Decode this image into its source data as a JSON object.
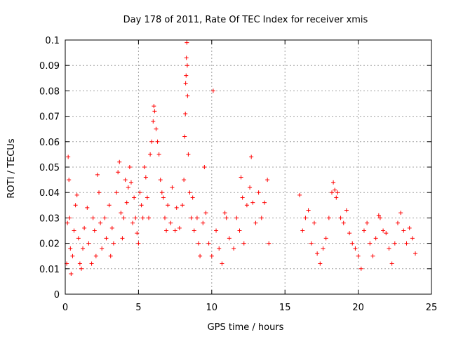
{
  "chart_data": {
    "type": "scatter",
    "title": "Day 178 of 2011, Rate Of TEC Index for receiver xmis",
    "xlabel": "GPS time / hours",
    "ylabel": "ROTI / TECUs",
    "xlim": [
      0,
      24
    ],
    "ylim": [
      0,
      0.1
    ],
    "xticks": [
      0,
      5,
      10,
      15,
      20,
      25
    ],
    "xtick_labels": [
      "0",
      "5",
      "10",
      "15",
      "20",
      "25"
    ],
    "yticks": [
      0,
      0.01,
      0.02,
      0.03,
      0.04,
      0.05,
      0.06,
      0.07,
      0.08,
      0.09,
      0.1
    ],
    "ytick_labels": [
      "0",
      "0.01",
      "0.02",
      "0.03",
      "0.04",
      "0.05",
      "0.06",
      "0.07",
      "0.08",
      "0.09",
      "0.1"
    ],
    "grid": true,
    "marker": "+",
    "color": "#ff0000",
    "data_gap_hours": [
      14.0,
      16.0
    ],
    "series": [
      {
        "name": "ROTI",
        "points": [
          [
            0.1,
            0.012
          ],
          [
            0.15,
            0.028
          ],
          [
            0.2,
            0.054
          ],
          [
            0.25,
            0.045
          ],
          [
            0.3,
            0.03
          ],
          [
            0.35,
            0.018
          ],
          [
            0.4,
            0.008
          ],
          [
            0.5,
            0.015
          ],
          [
            0.6,
            0.025
          ],
          [
            0.7,
            0.035
          ],
          [
            0.8,
            0.039
          ],
          [
            0.9,
            0.022
          ],
          [
            1.0,
            0.012
          ],
          [
            1.1,
            0.01
          ],
          [
            1.2,
            0.018
          ],
          [
            1.3,
            0.026
          ],
          [
            1.5,
            0.034
          ],
          [
            1.6,
            0.02
          ],
          [
            1.8,
            0.012
          ],
          [
            1.9,
            0.03
          ],
          [
            2.0,
            0.025
          ],
          [
            2.1,
            0.015
          ],
          [
            2.2,
            0.047
          ],
          [
            2.3,
            0.04
          ],
          [
            2.4,
            0.028
          ],
          [
            2.5,
            0.018
          ],
          [
            2.7,
            0.03
          ],
          [
            2.8,
            0.022
          ],
          [
            3.0,
            0.035
          ],
          [
            3.1,
            0.015
          ],
          [
            3.2,
            0.026
          ],
          [
            3.3,
            0.02
          ],
          [
            3.5,
            0.04
          ],
          [
            3.6,
            0.048
          ],
          [
            3.7,
            0.052
          ],
          [
            3.8,
            0.032
          ],
          [
            3.9,
            0.022
          ],
          [
            4.0,
            0.03
          ],
          [
            4.1,
            0.045
          ],
          [
            4.2,
            0.036
          ],
          [
            4.3,
            0.042
          ],
          [
            4.4,
            0.05
          ],
          [
            4.5,
            0.044
          ],
          [
            4.6,
            0.028
          ],
          [
            4.7,
            0.038
          ],
          [
            4.8,
            0.03
          ],
          [
            4.9,
            0.024
          ],
          [
            5.0,
            0.02
          ],
          [
            5.1,
            0.04
          ],
          [
            5.2,
            0.035
          ],
          [
            5.3,
            0.03
          ],
          [
            5.4,
            0.05
          ],
          [
            5.5,
            0.046
          ],
          [
            5.6,
            0.038
          ],
          [
            5.7,
            0.03
          ],
          [
            5.8,
            0.055
          ],
          [
            5.9,
            0.06
          ],
          [
            6.0,
            0.068
          ],
          [
            6.05,
            0.074
          ],
          [
            6.1,
            0.072
          ],
          [
            6.2,
            0.065
          ],
          [
            6.3,
            0.06
          ],
          [
            6.4,
            0.055
          ],
          [
            6.5,
            0.045
          ],
          [
            6.6,
            0.04
          ],
          [
            6.7,
            0.038
          ],
          [
            6.8,
            0.03
          ],
          [
            6.9,
            0.025
          ],
          [
            7.0,
            0.035
          ],
          [
            7.2,
            0.028
          ],
          [
            7.3,
            0.042
          ],
          [
            7.5,
            0.025
          ],
          [
            7.6,
            0.034
          ],
          [
            7.8,
            0.026
          ],
          [
            8.0,
            0.035
          ],
          [
            8.1,
            0.045
          ],
          [
            8.15,
            0.062
          ],
          [
            8.2,
            0.071
          ],
          [
            8.22,
            0.083
          ],
          [
            8.25,
            0.086
          ],
          [
            8.27,
            0.093
          ],
          [
            8.3,
            0.099
          ],
          [
            8.33,
            0.09
          ],
          [
            8.35,
            0.078
          ],
          [
            8.4,
            0.055
          ],
          [
            8.5,
            0.04
          ],
          [
            8.6,
            0.03
          ],
          [
            8.7,
            0.038
          ],
          [
            8.8,
            0.025
          ],
          [
            9.0,
            0.03
          ],
          [
            9.1,
            0.02
          ],
          [
            9.2,
            0.015
          ],
          [
            9.4,
            0.028
          ],
          [
            9.5,
            0.05
          ],
          [
            9.6,
            0.032
          ],
          [
            9.8,
            0.02
          ],
          [
            10.0,
            0.015
          ],
          [
            10.1,
            0.08
          ],
          [
            10.3,
            0.025
          ],
          [
            10.5,
            0.018
          ],
          [
            10.7,
            0.012
          ],
          [
            10.9,
            0.032
          ],
          [
            11.0,
            0.03
          ],
          [
            11.2,
            0.022
          ],
          [
            11.5,
            0.018
          ],
          [
            11.7,
            0.03
          ],
          [
            11.9,
            0.025
          ],
          [
            12.0,
            0.046
          ],
          [
            12.1,
            0.038
          ],
          [
            12.2,
            0.02
          ],
          [
            12.4,
            0.035
          ],
          [
            12.6,
            0.042
          ],
          [
            12.7,
            0.054
          ],
          [
            12.8,
            0.036
          ],
          [
            13.0,
            0.028
          ],
          [
            13.2,
            0.04
          ],
          [
            13.4,
            0.03
          ],
          [
            13.6,
            0.036
          ],
          [
            13.8,
            0.045
          ],
          [
            13.9,
            0.02
          ],
          [
            16.0,
            0.039
          ],
          [
            16.2,
            0.025
          ],
          [
            16.4,
            0.03
          ],
          [
            16.6,
            0.033
          ],
          [
            16.8,
            0.02
          ],
          [
            17.0,
            0.028
          ],
          [
            17.2,
            0.016
          ],
          [
            17.4,
            0.012
          ],
          [
            17.6,
            0.018
          ],
          [
            17.8,
            0.022
          ],
          [
            18.0,
            0.03
          ],
          [
            18.2,
            0.04
          ],
          [
            18.3,
            0.044
          ],
          [
            18.4,
            0.041
          ],
          [
            18.5,
            0.038
          ],
          [
            18.6,
            0.04
          ],
          [
            18.8,
            0.03
          ],
          [
            19.0,
            0.028
          ],
          [
            19.2,
            0.033
          ],
          [
            19.4,
            0.024
          ],
          [
            19.6,
            0.02
          ],
          [
            19.8,
            0.018
          ],
          [
            20.0,
            0.015
          ],
          [
            20.2,
            0.01
          ],
          [
            20.4,
            0.025
          ],
          [
            20.6,
            0.028
          ],
          [
            20.8,
            0.02
          ],
          [
            21.0,
            0.015
          ],
          [
            21.2,
            0.022
          ],
          [
            21.4,
            0.031
          ],
          [
            21.5,
            0.03
          ],
          [
            21.7,
            0.025
          ],
          [
            21.9,
            0.024
          ],
          [
            22.1,
            0.018
          ],
          [
            22.3,
            0.012
          ],
          [
            22.5,
            0.02
          ],
          [
            22.7,
            0.028
          ],
          [
            22.9,
            0.032
          ],
          [
            23.1,
            0.025
          ],
          [
            23.3,
            0.02
          ],
          [
            23.5,
            0.026
          ],
          [
            23.7,
            0.022
          ],
          [
            23.9,
            0.016
          ]
        ]
      }
    ]
  }
}
